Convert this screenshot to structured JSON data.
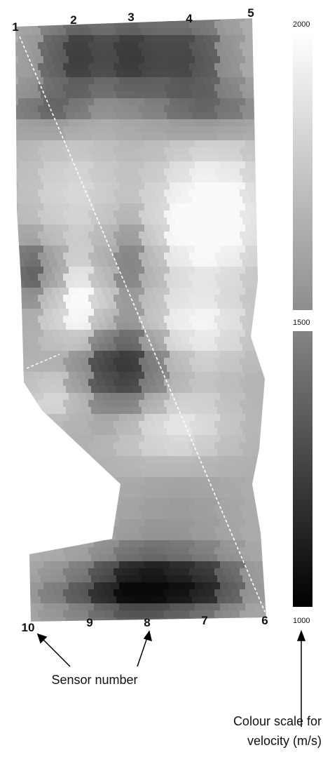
{
  "figure": {
    "sensors": [
      "1",
      "2",
      "3",
      "4",
      "5",
      "6",
      "7",
      "8",
      "9",
      "10"
    ],
    "colour_scale": {
      "ticks": [
        2000,
        1500,
        1000
      ]
    },
    "annotations": {
      "sensor": "Sensor number",
      "scale": [
        "Colour scale for",
        "velocity (m/s)"
      ]
    }
  }
}
